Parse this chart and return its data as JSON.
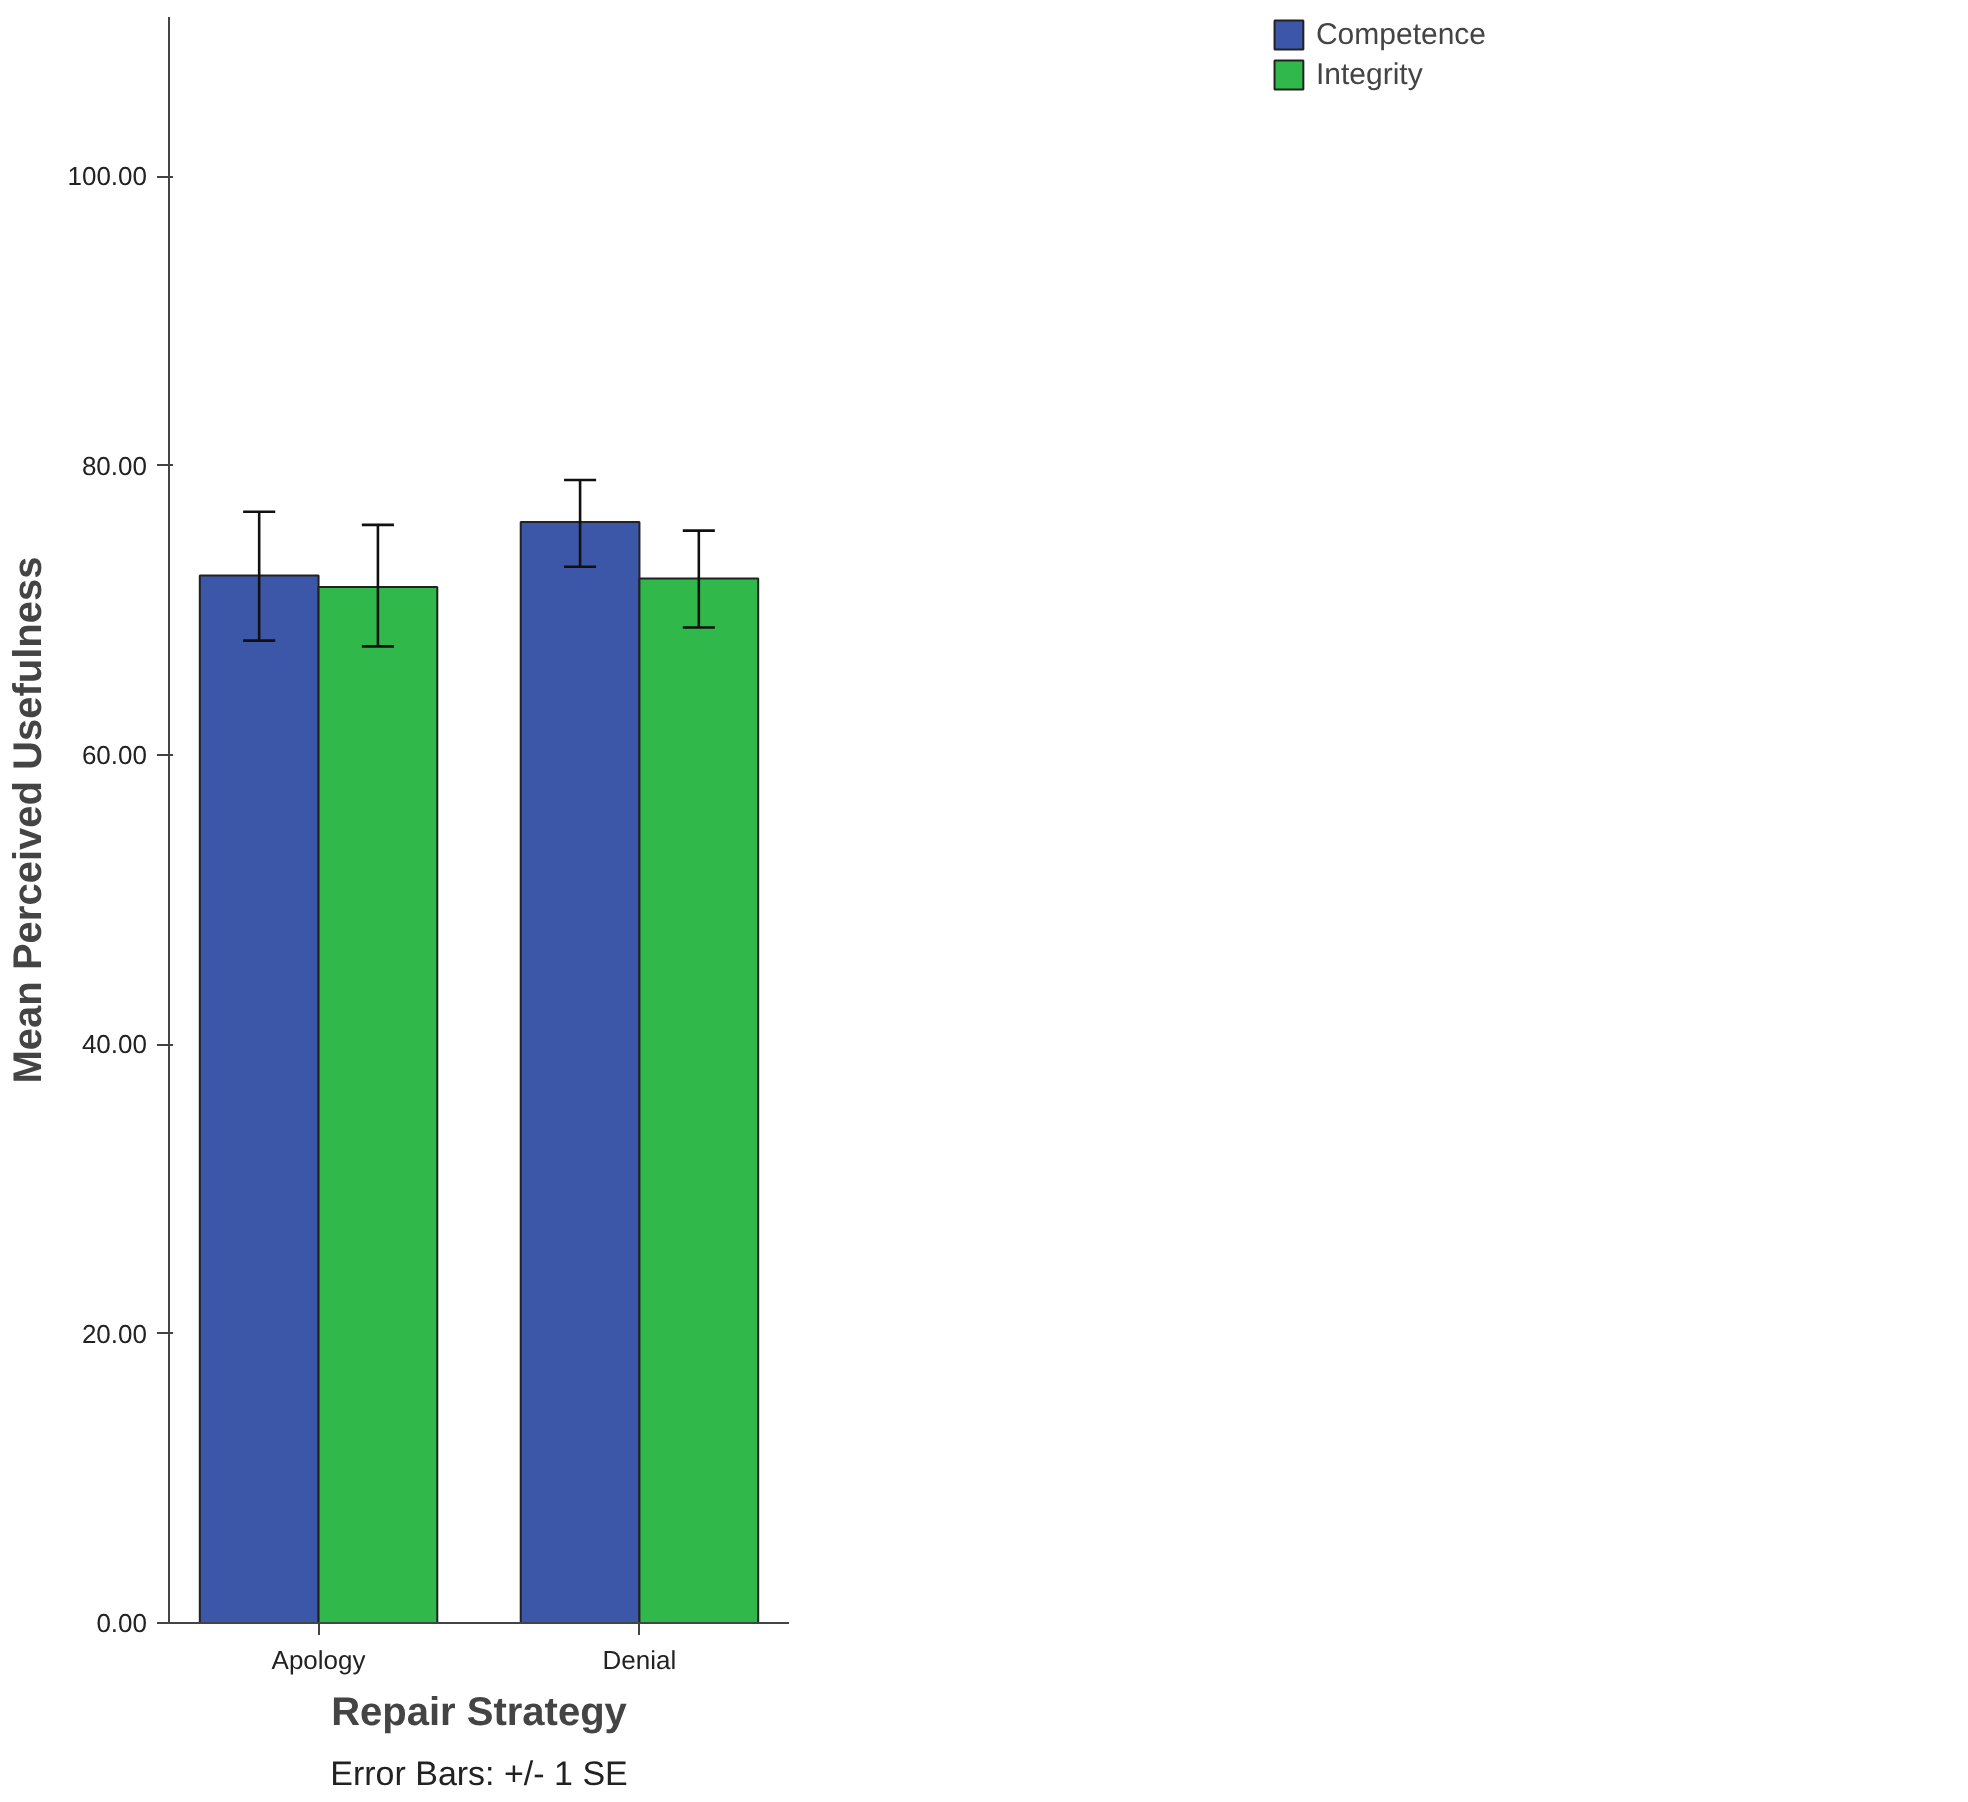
{
  "chart_data": {
    "type": "bar",
    "xlabel": "Repair Strategy",
    "ylabel": "Mean Perceived Usefulness",
    "categories": [
      "Apology",
      "Denial"
    ],
    "series": [
      {
        "name": "Competence",
        "color": "#3c56a8",
        "values": [
          72.4,
          76.1
        ],
        "errors": [
          [
            67.9,
            76.8
          ],
          [
            73.0,
            79.0
          ]
        ]
      },
      {
        "name": "Integrity",
        "color": "#30b94a",
        "values": [
          71.6,
          72.2
        ],
        "errors": [
          [
            67.5,
            75.9
          ],
          [
            68.8,
            75.5
          ]
        ]
      }
    ],
    "ylim": [
      0,
      111
    ],
    "yticks": [
      {
        "value": 0,
        "label": "0.00"
      },
      {
        "value": 20,
        "label": "20.00"
      },
      {
        "value": 40,
        "label": "40.00"
      },
      {
        "value": 60,
        "label": "60.00"
      },
      {
        "value": 80,
        "label": "80.00"
      },
      {
        "value": 100,
        "label": "100.00"
      }
    ],
    "grid": false,
    "legend": "top right",
    "annotations": [
      "Error Bars: +/- 1 SE"
    ]
  }
}
